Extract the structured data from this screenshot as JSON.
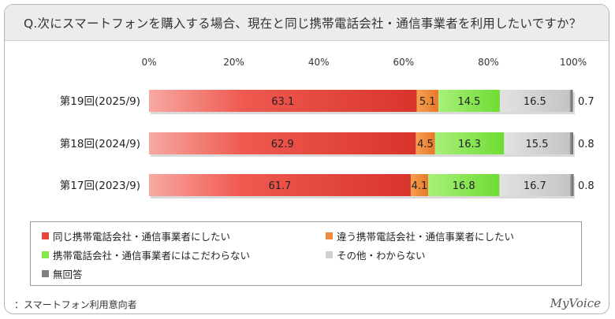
{
  "title": "Q.次にスマートフォンを購入する場合、現在と同じ携帯電話会社・通信事業者を利用したいですか？",
  "footnote": "：スマートフォン利用意向者",
  "brand": "MyVoice",
  "chart_data": {
    "type": "bar",
    "orientation": "horizontal-stacked-100",
    "x_ticks": [
      "0%",
      "20%",
      "40%",
      "60%",
      "80%",
      "100%"
    ],
    "xlim": [
      0,
      100
    ],
    "categories": [
      "第19回(2025/9)",
      "第18回(2024/9)",
      "第17回(2023/9)"
    ],
    "series": [
      {
        "name": "同じ携帯電話会社・通信事業者にしたい",
        "color": "#e8453c",
        "values": [
          63.1,
          62.9,
          61.7
        ]
      },
      {
        "name": "違う携帯電話会社・通信事業者にしたい",
        "color": "#f08a3c",
        "values": [
          5.1,
          4.5,
          4.1
        ]
      },
      {
        "name": "携帯電話会社・通信事業者にはこだわらない",
        "color": "#86e84a",
        "values": [
          14.5,
          16.3,
          16.8
        ]
      },
      {
        "name": "その他・わからない",
        "color": "#cfcfcf",
        "values": [
          16.5,
          15.5,
          16.7
        ]
      },
      {
        "name": "無回答",
        "color": "#808080",
        "values": [
          0.7,
          0.8,
          0.8
        ]
      }
    ],
    "value_labels": [
      [
        "63.1",
        "5.1",
        "14.5",
        "16.5",
        "0.7"
      ],
      [
        "62.9",
        "4.5",
        "16.3",
        "15.5",
        "0.8"
      ],
      [
        "61.7",
        "4.1",
        "16.8",
        "16.7",
        "0.8"
      ]
    ],
    "legend_position": "bottom"
  }
}
